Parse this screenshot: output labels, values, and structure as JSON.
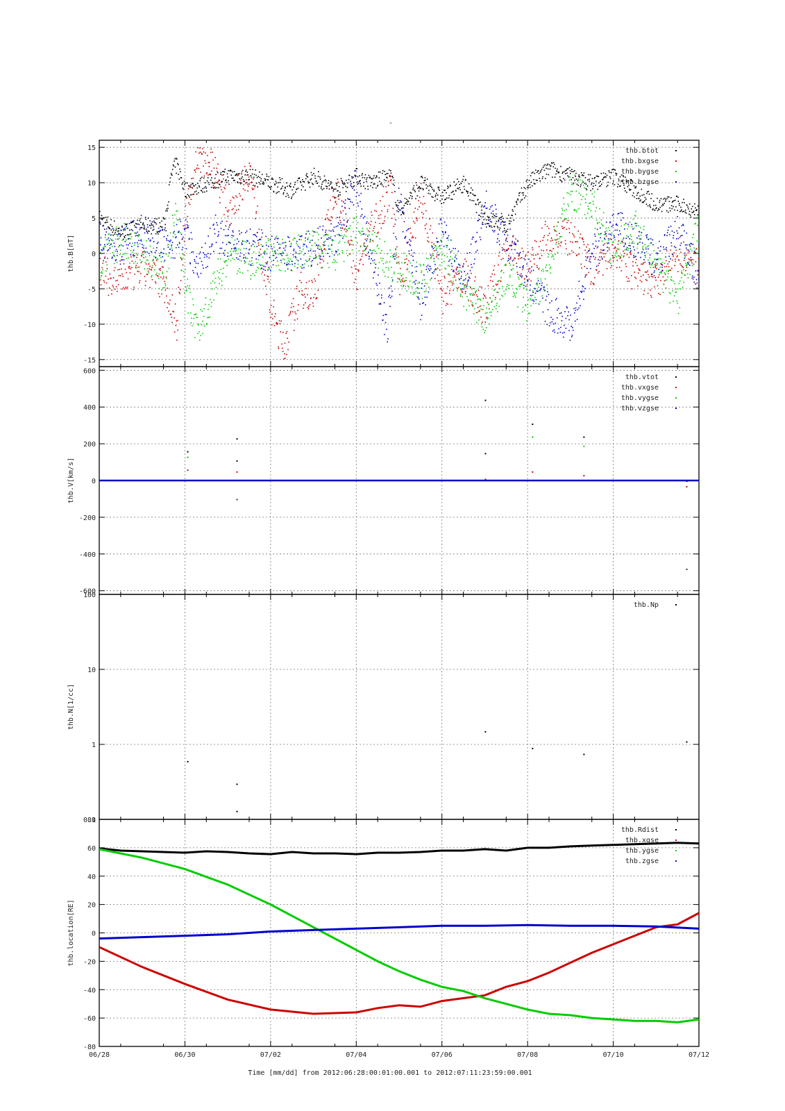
{
  "figure": {
    "title": "-",
    "xlabel": "Time [mm/dd]  from 2012:06:28:00:01:00.001  to  2012:07:11:23:59:00.001",
    "x_ticks": [
      "06/28",
      "06/30",
      "07/02",
      "07/04",
      "07/06",
      "07/08",
      "07/10",
      "07/12"
    ],
    "x_range_days": [
      0,
      14
    ]
  },
  "chart_data": [
    {
      "type": "scatter",
      "panel": "B",
      "ylabel": "thb.B[nT]",
      "ylim": [
        -16,
        16
      ],
      "y_ticks": [
        -15,
        -10,
        -5,
        0,
        5,
        10,
        15
      ],
      "grid": true,
      "legend_position": "top-right",
      "x_unit": "days since 06/28",
      "series": [
        {
          "name": "thb.btot",
          "color": "#000000",
          "x": [
            0,
            0.5,
            1,
            1.5,
            1.7,
            1.8,
            2,
            2.5,
            3,
            3.5,
            4,
            4.5,
            5,
            5.5,
            6,
            6.3,
            6.8,
            7,
            7.5,
            8,
            8.5,
            9,
            9.5,
            10,
            10.5,
            11,
            11.5,
            12,
            12.5,
            13,
            13.5,
            14
          ],
          "y": [
            5,
            3,
            4,
            4,
            12,
            12.5,
            9,
            10,
            11,
            11,
            10,
            9,
            11,
            9,
            11,
            10,
            11,
            6,
            10,
            8,
            10,
            5,
            4,
            10,
            12,
            11,
            10,
            11,
            9,
            7,
            7,
            6
          ]
        },
        {
          "name": "thb.bxgse",
          "color": "#cc0000",
          "x": [
            0,
            0.3,
            0.7,
            1,
            1.5,
            1.8,
            2,
            2.3,
            2.7,
            3,
            3.5,
            4,
            4.3,
            4.7,
            5,
            5.5,
            6,
            6.3,
            6.8,
            7,
            7.5,
            8,
            8.5,
            9,
            9.5,
            10,
            10.5,
            11,
            11.5,
            12,
            12.5,
            13,
            13.5,
            14
          ],
          "y": [
            -2,
            -4,
            -3,
            -2,
            -4,
            -10,
            5,
            14,
            12,
            6,
            12,
            -8,
            -13,
            -5,
            -6,
            10,
            -3,
            3,
            9,
            -5,
            8,
            -6,
            -3,
            -8,
            1,
            -2,
            3,
            2,
            -2,
            1,
            -3,
            -4,
            0,
            -2
          ]
        },
        {
          "name": "thb.bygse",
          "color": "#00cc00",
          "x": [
            0,
            0.5,
            1,
            1.5,
            1.8,
            2,
            2.3,
            2.7,
            3,
            3.5,
            4,
            4.5,
            5,
            5.5,
            6,
            6.5,
            7,
            7.5,
            8,
            8.5,
            9,
            9.5,
            10,
            10.5,
            11,
            11.5,
            12,
            12.5,
            13,
            13.5,
            14
          ],
          "y": [
            -1,
            2,
            0,
            -3,
            6,
            -5,
            -11,
            -4,
            0,
            -1,
            0,
            0,
            1,
            0,
            3,
            0,
            -2,
            -4,
            1,
            -5,
            -9,
            -3,
            -8,
            -1,
            9,
            7,
            0,
            4,
            -2,
            -6,
            4
          ]
        },
        {
          "name": "thb.bzgse",
          "color": "#0000cc",
          "x": [
            0,
            0.5,
            1,
            1.5,
            2,
            2.3,
            2.7,
            3,
            3.5,
            4,
            4.5,
            5,
            5.5,
            6,
            6.3,
            6.7,
            7,
            7.5,
            8,
            8.5,
            9,
            9.5,
            10,
            10.5,
            11,
            11.5,
            12,
            12.5,
            13,
            13.5,
            14
          ],
          "y": [
            2,
            1,
            3,
            1,
            3,
            -2,
            3,
            2,
            1,
            0,
            0,
            1,
            2,
            10,
            0,
            -11,
            8,
            -7,
            4,
            -4,
            7,
            2,
            -3,
            -8,
            -10,
            0,
            4,
            2,
            -1,
            3,
            -3
          ]
        }
      ]
    },
    {
      "type": "scatter",
      "panel": "V",
      "ylabel": "thb.V[km/s]",
      "ylim": [
        -620,
        620
      ],
      "y_ticks": [
        -600,
        -400,
        -200,
        0,
        200,
        400,
        600
      ],
      "grid": true,
      "legend_position": "top-right",
      "x_unit": "days since 06/28",
      "series": [
        {
          "name": "thb.vtot",
          "color": "#000000",
          "x": [
            2.05,
            3.2,
            3.2,
            9,
            9,
            10.1,
            11.3,
            13.7
          ],
          "y": [
            160,
            230,
            110,
            440,
            150,
            310,
            240,
            0
          ]
        },
        {
          "name": "thb.vxgse",
          "color": "#cc0000",
          "x": [
            2.05,
            3.2,
            9,
            10.1,
            11.3,
            13.7
          ],
          "y": [
            60,
            50,
            10,
            50,
            30,
            -30
          ]
        },
        {
          "name": "thb.vygse",
          "color": "#00cc00",
          "x": [
            2.05,
            10.1,
            11.3
          ],
          "y": [
            130,
            240,
            190
          ]
        },
        {
          "name": "thb.vzgse",
          "color": "#0000cc",
          "x": [
            0,
            2,
            4,
            6,
            8,
            10,
            12,
            14,
            3.2,
            13.7
          ],
          "y": [
            0,
            0,
            0,
            0,
            0,
            0,
            0,
            0,
            -100,
            -480
          ]
        }
      ]
    },
    {
      "type": "scatter",
      "panel": "N",
      "ylabel": "thb.N[1/cc]",
      "ylim": [
        0.1,
        100
      ],
      "y_scale": "log",
      "y_ticks": [
        0.1,
        1,
        10,
        100
      ],
      "grid": true,
      "legend_position": "top-right",
      "x_unit": "days since 06/28",
      "series": [
        {
          "name": "thb.Np",
          "color": "#000000",
          "x": [
            2.05,
            3.2,
            3.2,
            9,
            10.1,
            11.3,
            13.7
          ],
          "y": [
            0.6,
            0.3,
            0.13,
            1.5,
            0.9,
            0.75,
            1.1
          ]
        }
      ]
    },
    {
      "type": "line",
      "panel": "location",
      "ylabel": "thb.location[RE]",
      "ylim": [
        -80,
        80
      ],
      "y_ticks": [
        -80,
        -60,
        -40,
        -20,
        0,
        20,
        40,
        60,
        80
      ],
      "grid": true,
      "legend_position": "top-right",
      "x_unit": "days since 06/28",
      "series": [
        {
          "name": "thb.Rdist",
          "color": "#000000",
          "x": [
            0,
            0.5,
            1,
            1.5,
            2,
            2.5,
            3,
            3.5,
            4,
            4.5,
            5,
            5.5,
            6,
            6.5,
            7,
            7.5,
            8,
            8.5,
            9,
            9.5,
            10,
            10.5,
            11,
            11.5,
            12,
            12.5,
            13,
            13.5,
            14
          ],
          "y": [
            59.5,
            58,
            57.5,
            57,
            56.5,
            57.5,
            57,
            56,
            55.5,
            57,
            56,
            56,
            55.5,
            56.5,
            56.5,
            57,
            58,
            58,
            59,
            58,
            60,
            60,
            61,
            61.5,
            62,
            62.5,
            63,
            63.5,
            63
          ]
        },
        {
          "name": "thb.xgse",
          "color": "#cc0000",
          "x": [
            0,
            1,
            2,
            3,
            4,
            5,
            6,
            6.5,
            7,
            7.5,
            8,
            8.5,
            9,
            9.5,
            10,
            10.5,
            11,
            11.5,
            12,
            12.5,
            13,
            13.5,
            14
          ],
          "y": [
            -10,
            -24,
            -36,
            -47,
            -54,
            -57,
            -56,
            -53,
            -51,
            -52,
            -48,
            -46,
            -44,
            -38,
            -34,
            -28,
            -21,
            -14,
            -8,
            -2,
            4,
            6,
            14
          ]
        },
        {
          "name": "thb.ygse",
          "color": "#00cc00",
          "x": [
            0,
            1,
            2,
            3,
            4,
            5,
            6,
            6.5,
            7,
            7.5,
            8,
            8.5,
            9,
            9.5,
            10,
            10.5,
            11,
            11.5,
            12,
            12.5,
            13,
            13.5,
            14
          ],
          "y": [
            59,
            53,
            45,
            34,
            20,
            4,
            -12,
            -20,
            -27,
            -33,
            -38,
            -41,
            -46,
            -50,
            -54,
            -57,
            -58,
            -60,
            -61,
            -62,
            -62,
            -63,
            -61
          ]
        },
        {
          "name": "thb.zgse",
          "color": "#0000cc",
          "x": [
            0,
            1,
            2,
            3,
            4,
            5,
            6,
            7,
            8,
            9,
            10,
            11,
            12,
            13,
            14
          ],
          "y": [
            -4,
            -3,
            -2,
            -1,
            1,
            2,
            3,
            4,
            5,
            5,
            5.5,
            5,
            5,
            4.5,
            3
          ]
        }
      ]
    }
  ]
}
